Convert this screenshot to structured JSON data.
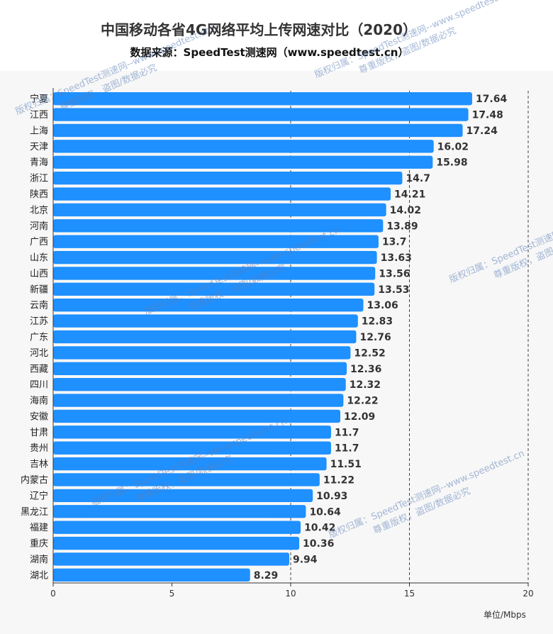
{
  "header": {
    "title": "中国移动各省4G网络平均上传网速对比（2020）",
    "subtitle": "数据来源：SpeedTest测速网（www.speedtest.cn）"
  },
  "unit_label": "单位/Mbps",
  "watermark": {
    "line1": "版权归属：SpeedTest测速网--www.speedtest.cn",
    "line2": "尊重版权，盗图/数据必究"
  },
  "colors": {
    "bar": "#1e90ff",
    "panel": "#f7f7f7",
    "grid": "#444444"
  },
  "chart_data": {
    "type": "bar",
    "orientation": "horizontal",
    "categories": [
      "宁夏",
      "江西",
      "上海",
      "天津",
      "青海",
      "浙江",
      "陕西",
      "北京",
      "河南",
      "广西",
      "山东",
      "山西",
      "新疆",
      "云南",
      "江苏",
      "广东",
      "河北",
      "西藏",
      "四川",
      "海南",
      "安徽",
      "甘肃",
      "贵州",
      "吉林",
      "内蒙古",
      "辽宁",
      "黑龙江",
      "福建",
      "重庆",
      "湖南",
      "湖北"
    ],
    "values": [
      17.64,
      17.48,
      17.24,
      16.02,
      15.98,
      14.7,
      14.21,
      14.02,
      13.89,
      13.7,
      13.63,
      13.56,
      13.53,
      13.06,
      12.83,
      12.76,
      12.52,
      12.36,
      12.32,
      12.22,
      12.09,
      11.7,
      11.7,
      11.51,
      11.22,
      10.93,
      10.64,
      10.42,
      10.36,
      9.94,
      8.29
    ],
    "xlim": [
      0,
      20
    ],
    "xticks": [
      0,
      5,
      10,
      15,
      20
    ],
    "grid": "vertical dashed at 10, 15, 20",
    "title": "中国移动各省4G网络平均上传网速对比（2020）",
    "xlabel": "单位/Mbps"
  }
}
